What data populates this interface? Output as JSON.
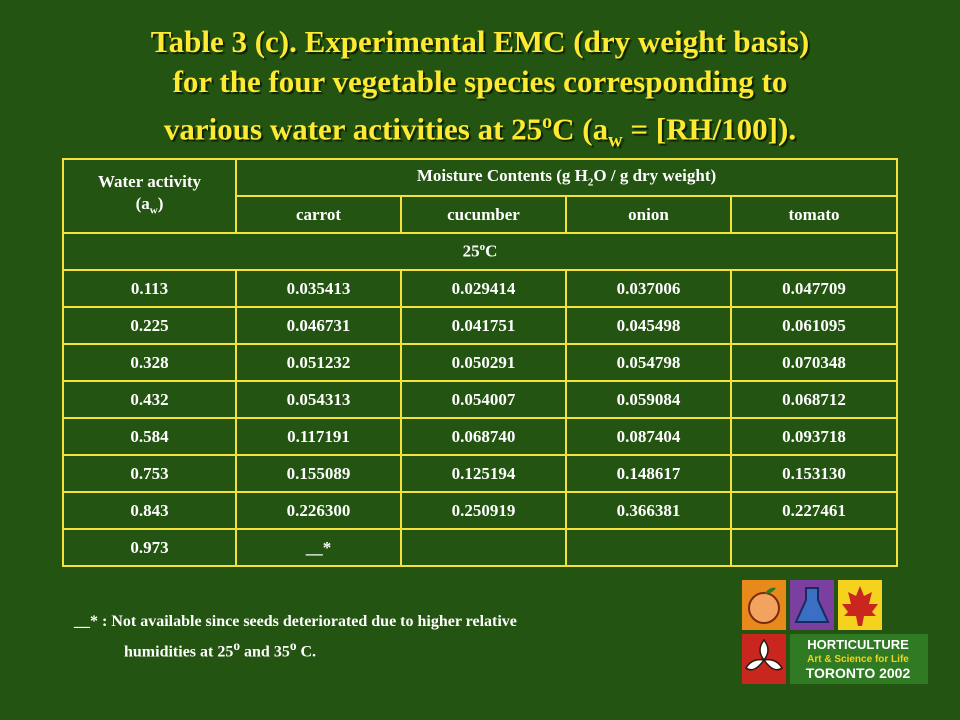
{
  "title": {
    "line1": "Table 3 (c). Experimental EMC (dry weight basis)",
    "line2": "for the four vegetable species corresponding to",
    "line3_a": "various water activities at 25",
    "line3_sup": "o",
    "line3_b": "C (a",
    "line3_sub": "w",
    "line3_c": " = [RH/100])."
  },
  "table": {
    "col1_header_a": "Water activity",
    "col1_header_b": "(a",
    "col1_header_sub": "w",
    "col1_header_c": ")",
    "group_header_a": "Moisture Contents (g H",
    "group_header_sub": "2",
    "group_header_b": "O / g dry weight)",
    "species": [
      "carrot",
      "cucumber",
      "onion",
      "tomato"
    ],
    "section_a": "25",
    "section_sup": "o",
    "section_b": "C",
    "rows": [
      {
        "aw": "0.113",
        "values": [
          "0.035413",
          "0.029414",
          "0.037006",
          "0.047709"
        ]
      },
      {
        "aw": "0.225",
        "values": [
          "0.046731",
          "0.041751",
          "0.045498",
          "0.061095"
        ]
      },
      {
        "aw": "0.328",
        "values": [
          "0.051232",
          "0.050291",
          "0.054798",
          "0.070348"
        ]
      },
      {
        "aw": "0.432",
        "values": [
          "0.054313",
          "0.054007",
          "0.059084",
          "0.068712"
        ]
      },
      {
        "aw": "0.584",
        "values": [
          "0.117191",
          "0.068740",
          "0.087404",
          "0.093718"
        ]
      },
      {
        "aw": "0.753",
        "values": [
          "0.155089",
          "0.125194",
          "0.148617",
          "0.153130"
        ]
      },
      {
        "aw": "0.843",
        "values": [
          "0.226300",
          "0.250919",
          "0.366381",
          "0.227461"
        ]
      },
      {
        "aw": "0.973",
        "values": [
          "__*",
          "",
          "",
          ""
        ]
      }
    ]
  },
  "footnote": {
    "line1": "__* : Not available since seeds deteriorated due to higher relative",
    "line2_a": "humidities at 25",
    "line2_sup1": "o",
    "line2_b": " and 35",
    "line2_sup2": "o",
    "line2_c": " C."
  },
  "logo": {
    "word1": "HORTICULTURE",
    "word2": "Art & Science for Life",
    "word3": "TORONTO 2002",
    "icons": [
      "peach-icon",
      "flask-icon",
      "maple-leaf-icon",
      "trillium-icon"
    ],
    "colors": {
      "orange": "#e8891c",
      "red": "#c8261e",
      "blue": "#3a6fc4",
      "yellow": "#f4d21e",
      "green": "#2f7a23"
    }
  }
}
